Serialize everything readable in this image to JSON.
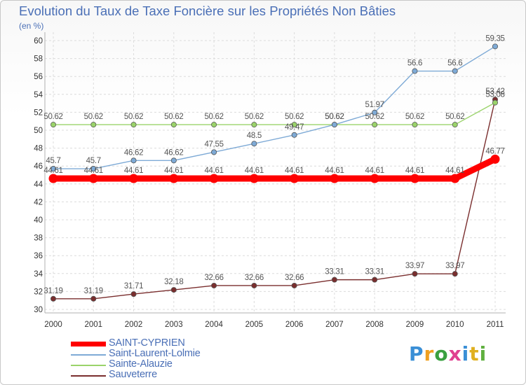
{
  "chart_data": {
    "type": "line",
    "title": "Evolution du Taux de Taxe Foncière sur les Propriétés Non Bâties",
    "unit": "(en %)",
    "xlabel": "",
    "ylabel": "",
    "ylim": [
      30,
      60
    ],
    "y_ticks": [
      "30",
      "32",
      "34",
      "36",
      "38",
      "40",
      "42",
      "44",
      "46",
      "48",
      "50",
      "52",
      "54",
      "56",
      "58",
      "60"
    ],
    "x": [
      "2000",
      "2001",
      "2002",
      "2003",
      "2004",
      "2005",
      "2006",
      "2007",
      "2008",
      "2009",
      "2010",
      "2011"
    ],
    "series": [
      {
        "name": "SAINT-CYPRIEN",
        "color": "#ff0000",
        "values": [
          44.61,
          44.61,
          44.61,
          44.61,
          44.61,
          44.61,
          44.61,
          44.61,
          44.61,
          44.61,
          44.61,
          46.77
        ],
        "labels": [
          "44.61",
          "44.61",
          "44.61",
          "44.61",
          "44.61",
          "44.61",
          "44.61",
          "44.61",
          "44.61",
          "44.61",
          "44.61",
          "46.77"
        ]
      },
      {
        "name": "Saint-Laurent-Lolmie",
        "color": "#7eaad6",
        "values": [
          45.7,
          45.7,
          46.62,
          46.62,
          47.55,
          48.5,
          49.47,
          50.62,
          51.97,
          56.6,
          56.6,
          59.35
        ],
        "labels": [
          "45.7",
          "45.7",
          "46.62",
          "46.62",
          "47.55",
          "48.5",
          "49.47",
          "50.62",
          "51.97",
          "56.6",
          "56.6",
          "59.35"
        ]
      },
      {
        "name": "Sainte-Alauzie",
        "color": "#9ad36a",
        "values": [
          50.62,
          50.62,
          50.62,
          50.62,
          50.62,
          50.62,
          50.62,
          50.62,
          50.62,
          50.62,
          50.62,
          53.08
        ],
        "labels": [
          "50.62",
          "50.62",
          "50.62",
          "50.62",
          "50.62",
          "50.62",
          "50.62",
          "50.62",
          "50.62",
          "50.62",
          "50.62",
          "53.08"
        ]
      },
      {
        "name": "Sauveterre",
        "color": "#7a2e2e",
        "values": [
          31.19,
          31.19,
          31.71,
          32.18,
          32.66,
          32.66,
          32.66,
          33.31,
          33.31,
          33.97,
          33.97,
          53.42
        ],
        "labels": [
          "31.19",
          "31.19",
          "31.71",
          "32.18",
          "32.66",
          "32.66",
          "32.66",
          "33.31",
          "33.31",
          "33.97",
          "33.97",
          "53.42"
        ]
      }
    ],
    "grid": true,
    "legend": "bottom-left"
  },
  "brand": {
    "letters": [
      "P",
      "r",
      "o",
      "x",
      "i",
      "t",
      "i"
    ],
    "colors": [
      "#3a8fd6",
      "#f0a020",
      "#3aa040",
      "#e04090",
      "#3a8fd6",
      "#e0b020",
      "#60b040"
    ]
  }
}
